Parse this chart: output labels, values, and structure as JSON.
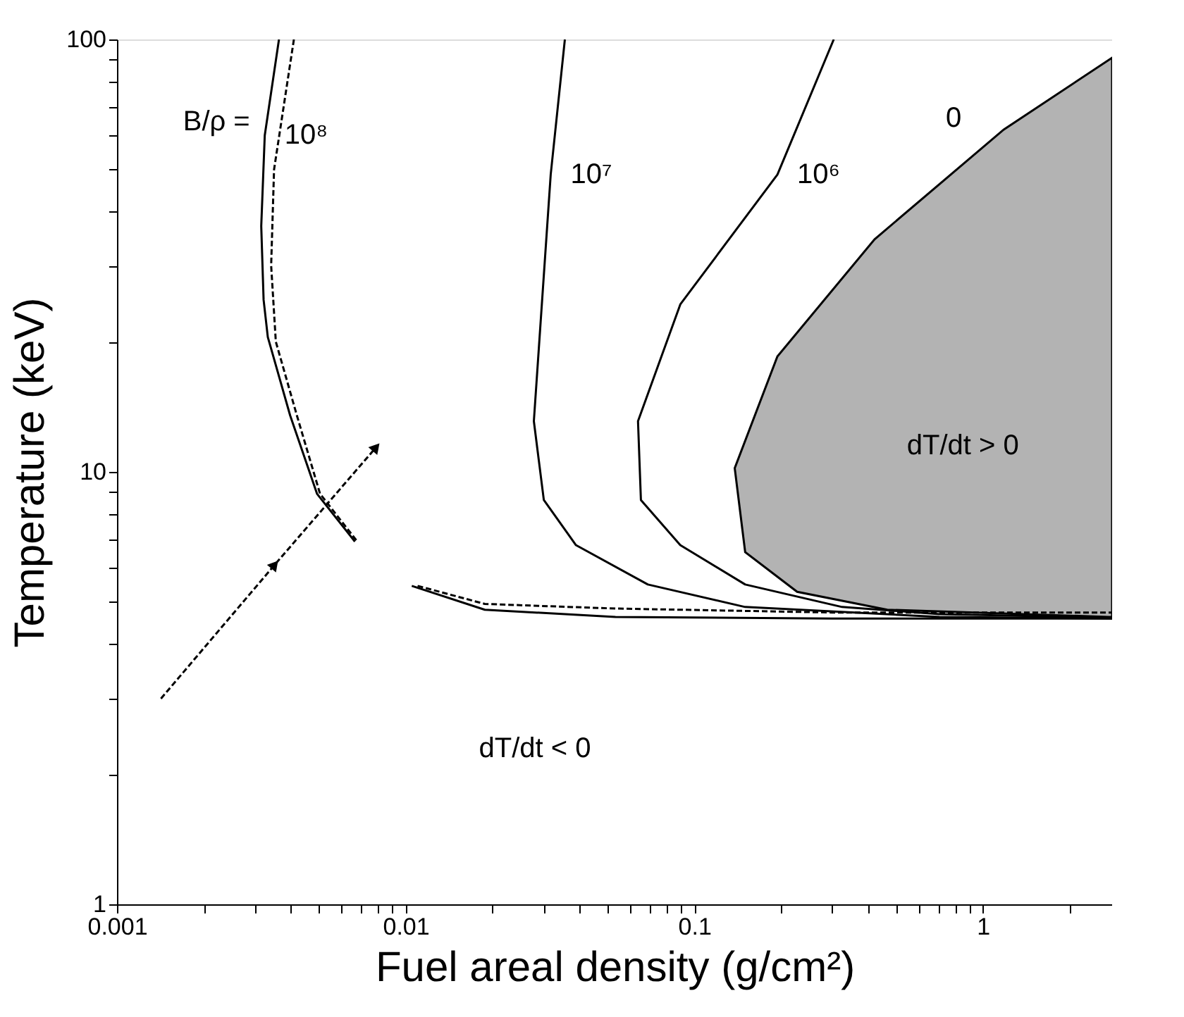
{
  "chart_data": {
    "type": "line",
    "xlabel": "Fuel areal density (g/cm²)",
    "ylabel": "Temperature (keV)",
    "log": "xy",
    "grid": false,
    "xlim": [
      0.001,
      2.8
    ],
    "ylim": [
      1,
      100
    ],
    "xticks": [
      0.001,
      {
        "value": 0.002,
        "label": null
      },
      {
        "value": 0.003,
        "label": null
      },
      {
        "value": 0.004,
        "label": null
      },
      {
        "value": 0.005,
        "label": null
      },
      {
        "value": 0.006,
        "label": null
      },
      {
        "value": 0.007,
        "label": null
      },
      {
        "value": 0.008,
        "label": null
      },
      {
        "value": 0.009,
        "label": null
      },
      0.01,
      {
        "value": 0.02,
        "label": null
      },
      {
        "value": 0.03,
        "label": null
      },
      {
        "value": 0.04,
        "label": null
      },
      {
        "value": 0.05,
        "label": null
      },
      {
        "value": 0.06,
        "label": null
      },
      {
        "value": 0.07,
        "label": null
      },
      {
        "value": 0.08,
        "label": null
      },
      {
        "value": 0.09,
        "label": null
      },
      0.1,
      {
        "value": 0.2,
        "label": null
      },
      {
        "value": 0.3,
        "label": null
      },
      {
        "value": 0.4,
        "label": null
      },
      {
        "value": 0.5,
        "label": null
      },
      {
        "value": 0.6,
        "label": null
      },
      {
        "value": 0.7,
        "label": null
      },
      {
        "value": 0.8,
        "label": null
      },
      {
        "value": 0.9,
        "label": null
      },
      1,
      {
        "value": 2,
        "label": null
      }
    ],
    "yticks": [
      1,
      {
        "value": 2,
        "label": null
      },
      {
        "value": 3,
        "label": null
      },
      {
        "value": 4,
        "label": null
      },
      {
        "value": 5,
        "label": null
      },
      {
        "value": 6,
        "label": null
      },
      {
        "value": 7,
        "label": null
      },
      {
        "value": 8,
        "label": null
      },
      {
        "value": 9,
        "label": null
      },
      10,
      {
        "value": 20,
        "label": null
      },
      {
        "value": 30,
        "label": null
      },
      {
        "value": 40,
        "label": null
      },
      {
        "value": 50,
        "label": null
      },
      {
        "value": 60,
        "label": null
      },
      {
        "value": 70,
        "label": null
      },
      {
        "value": 80,
        "label": null
      },
      {
        "value": 90,
        "label": null
      },
      100
    ],
    "series": [
      {
        "name": "0",
        "type": "area",
        "color": "#b3b3b3",
        "x": [
          2.8,
          1.18,
          0.421,
          0.194,
          0.138,
          0.15,
          0.227,
          0.466,
          2.72
        ],
        "values": [
          90.7,
          61.9,
          34.5,
          18.5,
          10.2,
          6.52,
          5.28,
          4.8,
          4.62
        ]
      },
      {
        "name": "10⁸",
        "color": "#000000",
        "line_style": "solid",
        "x": [
          0.00364,
          0.00325,
          0.00316,
          0.00322,
          0.00333,
          0.00398,
          0.00493,
          0.00667,
          0.009,
          0.0105,
          0.0188,
          0.0533,
          0.3,
          2.8
        ],
        "values": [
          100,
          60,
          37,
          25,
          20.5,
          13.5,
          8.9,
          6.9,
          null,
          5.45,
          4.8,
          4.62,
          4.58,
          4.58
        ]
      },
      {
        "color": "#000000",
        "line_style": "dashed",
        "x": [
          0.0041,
          0.0035,
          0.00342,
          0.00355,
          0.0042,
          0.00505,
          0.0068,
          0.009,
          0.011,
          0.0188,
          0.0533,
          0.3,
          2.8
        ],
        "values": [
          100,
          50,
          30,
          20,
          13.5,
          8.9,
          6.9,
          null,
          5.45,
          4.95,
          4.83,
          4.73,
          4.73
        ]
      },
      {
        "name": "10⁷",
        "color": "#000000",
        "line_style": "solid",
        "x": [
          0.0356,
          0.0318,
          0.0278,
          0.0301,
          0.0389,
          0.069,
          0.15,
          0.706,
          2.8
        ],
        "values": [
          100,
          48.7,
          13.1,
          8.61,
          6.77,
          5.49,
          4.87,
          4.62,
          4.58
        ]
      },
      {
        "name": "10⁶",
        "color": "#000000",
        "line_style": "solid",
        "x": [
          0.304,
          0.194,
          0.0894,
          0.0638,
          0.0653,
          0.0894,
          0.15,
          0.325,
          0.706,
          2.8
        ],
        "values": [
          100,
          48.7,
          24.4,
          13.1,
          8.61,
          6.77,
          5.49,
          4.87,
          4.69,
          4.6
        ]
      },
      {
        "color": "#000000",
        "line_style": "dashed",
        "marker": "triangle",
        "x": [
          0.00142,
          0.00352,
          0.0079
        ],
        "values": [
          2.99,
          6.1,
          11.4
        ]
      }
    ],
    "annotations": [
      "B/ρ =",
      "dT/dt > 0",
      "dT/dt < 0"
    ]
  }
}
